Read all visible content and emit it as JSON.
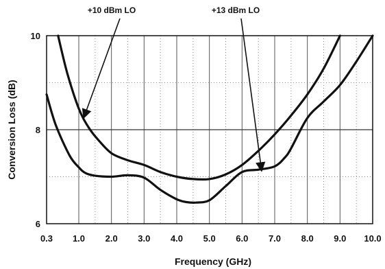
{
  "chart_data": {
    "type": "line",
    "title": "",
    "xlabel": "Frequency (GHz)",
    "ylabel": "Conversion Loss (dB)",
    "xlim": [
      0.3,
      10.0
    ],
    "ylim": [
      6,
      10
    ],
    "x_ticks": [
      {
        "value": 0.3,
        "label": "0.3"
      },
      {
        "value": 1.0,
        "label": "1.0"
      },
      {
        "value": 2.0,
        "label": "2.0"
      },
      {
        "value": 3.0,
        "label": "3.0"
      },
      {
        "value": 4.0,
        "label": "4.0"
      },
      {
        "value": 5.0,
        "label": "5.0"
      },
      {
        "value": 6.0,
        "label": "6.0"
      },
      {
        "value": 7.0,
        "label": "7.0"
      },
      {
        "value": 8.0,
        "label": "8.0"
      },
      {
        "value": 9.0,
        "label": "9.0"
      },
      {
        "value": 10.0,
        "label": "10.0"
      }
    ],
    "y_ticks": [
      {
        "value": 6,
        "label": "6"
      },
      {
        "value": 8,
        "label": "8"
      },
      {
        "value": 10,
        "label": "10"
      }
    ],
    "grid": true,
    "series": [
      {
        "name": "+10 dBm LO",
        "x": [
          0.55,
          0.75,
          1.0,
          1.3,
          1.6,
          2.0,
          2.5,
          3.0,
          3.5,
          4.0,
          4.5,
          5.0,
          5.5,
          6.0,
          6.5,
          7.0,
          7.5,
          8.0,
          8.5,
          9.0
        ],
        "y": [
          10.0,
          9.2,
          8.45,
          8.05,
          7.78,
          7.5,
          7.35,
          7.25,
          7.1,
          7.0,
          6.95,
          6.95,
          7.05,
          7.25,
          7.55,
          7.9,
          8.3,
          8.75,
          9.3,
          10.0
        ]
      },
      {
        "name": "+13 dBm LO",
        "x": [
          0.3,
          0.5,
          0.8,
          1.0,
          1.2,
          1.5,
          2.0,
          2.5,
          3.0,
          3.5,
          4.0,
          4.3,
          4.6,
          5.0,
          5.5,
          6.0,
          6.5,
          7.0,
          7.3,
          7.5,
          8.0,
          8.5,
          9.0,
          9.5,
          10.0
        ],
        "y": [
          8.75,
          8.1,
          7.45,
          7.2,
          7.08,
          7.02,
          7.0,
          7.03,
          6.98,
          6.72,
          6.52,
          6.46,
          6.45,
          6.5,
          6.8,
          7.1,
          7.15,
          7.22,
          7.4,
          7.6,
          8.25,
          8.6,
          8.95,
          9.45,
          10.0
        ]
      }
    ],
    "annotations": [
      {
        "text": "+10 dBm LO",
        "points_to": {
          "x": 1.15,
          "y": 8.25
        }
      },
      {
        "text": "+13 dBm LO",
        "points_to": {
          "x": 6.6,
          "y": 7.12
        }
      }
    ]
  }
}
